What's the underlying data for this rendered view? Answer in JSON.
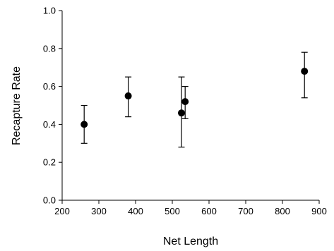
{
  "chart_data": {
    "type": "scatter",
    "title": "",
    "xlabel": "Net Length",
    "ylabel": "Recapture Rate",
    "xlim": [
      200,
      900
    ],
    "ylim": [
      0.0,
      1.0
    ],
    "xticks": [
      "200",
      "300",
      "400",
      "500",
      "600",
      "700",
      "800",
      "900"
    ],
    "yticks": [
      "0.0",
      "0.2",
      "0.4",
      "0.6",
      "0.8",
      "1.0"
    ],
    "grid": false,
    "points": [
      {
        "x": 260,
        "y": 0.4,
        "err_low": 0.3,
        "err_high": 0.5
      },
      {
        "x": 380,
        "y": 0.55,
        "err_low": 0.44,
        "err_high": 0.65
      },
      {
        "x": 525,
        "y": 0.46,
        "err_low": 0.28,
        "err_high": 0.65
      },
      {
        "x": 535,
        "y": 0.52,
        "err_low": 0.43,
        "err_high": 0.6
      },
      {
        "x": 860,
        "y": 0.68,
        "err_low": 0.54,
        "err_high": 0.78
      }
    ],
    "marker_color": "#000000"
  }
}
